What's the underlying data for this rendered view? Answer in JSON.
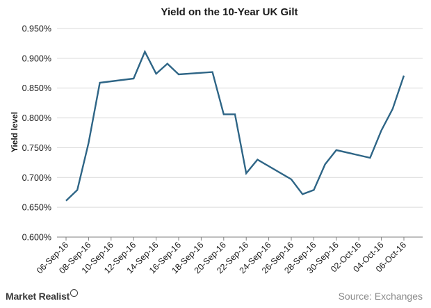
{
  "chart_data": {
    "type": "line",
    "title": "Yield on the 10-Year UK Gilt",
    "xlabel": "",
    "ylabel": "Yield level",
    "ylim": [
      0.6,
      0.95
    ],
    "y_ticks": [
      "0.600%",
      "0.650%",
      "0.700%",
      "0.750%",
      "0.800%",
      "0.850%",
      "0.900%",
      "0.950%"
    ],
    "x_ticks": [
      "06-Sep-16",
      "08-Sep-16",
      "10-Sep-16",
      "12-Sep-16",
      "14-Sep-16",
      "16-Sep-16",
      "18-Sep-16",
      "20-Sep-16",
      "22-Sep-16",
      "24-Sep-16",
      "26-Sep-16",
      "28-Sep-16",
      "30-Sep-16",
      "02-Oct-16",
      "04-Oct-16",
      "06-Oct-16"
    ],
    "grid": true,
    "color": "#2e6586",
    "series": [
      {
        "points": [
          [
            "2016-09-06",
            0.661
          ],
          [
            "2016-09-07",
            0.679
          ],
          [
            "2016-09-08",
            0.758
          ],
          [
            "2016-09-09",
            0.859
          ],
          [
            "2016-09-12",
            0.866
          ],
          [
            "2016-09-13",
            0.911
          ],
          [
            "2016-09-14",
            0.874
          ],
          [
            "2016-09-15",
            0.891
          ],
          [
            "2016-09-16",
            0.873
          ],
          [
            "2016-09-19",
            0.877
          ],
          [
            "2016-09-20",
            0.806
          ],
          [
            "2016-09-21",
            0.806
          ],
          [
            "2016-09-22",
            0.707
          ],
          [
            "2016-09-23",
            0.73
          ],
          [
            "2016-09-26",
            0.697
          ],
          [
            "2016-09-27",
            0.672
          ],
          [
            "2016-09-28",
            0.679
          ],
          [
            "2016-09-29",
            0.722
          ],
          [
            "2016-09-30",
            0.746
          ],
          [
            "2016-10-03",
            0.733
          ],
          [
            "2016-10-04",
            0.779
          ],
          [
            "2016-10-05",
            0.815
          ],
          [
            "2016-10-06",
            0.871
          ]
        ]
      }
    ]
  },
  "footer": {
    "brand": "Market Realist",
    "source": "Source: Exchanges"
  }
}
